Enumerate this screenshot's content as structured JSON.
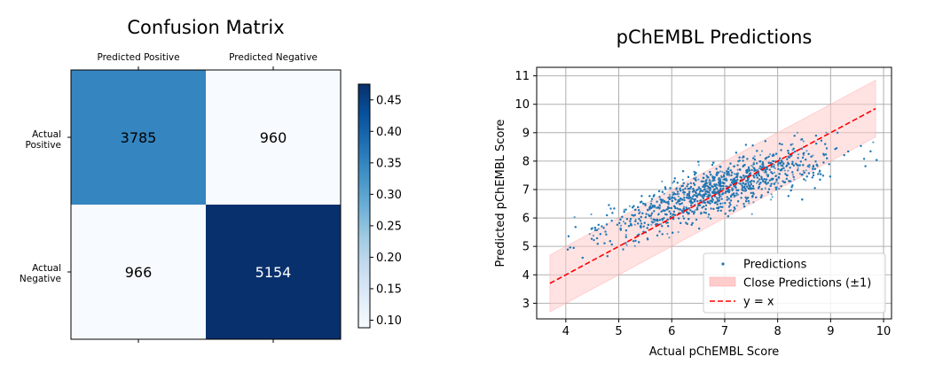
{
  "chart_data": [
    {
      "type": "heatmap",
      "title": "Confusion Matrix",
      "col_labels": [
        "Predicted Positive",
        "Predicted Negative"
      ],
      "row_labels": [
        [
          "Actual",
          "Positive"
        ],
        [
          "Actual",
          "Negative"
        ]
      ],
      "counts": [
        [
          3785,
          960
        ],
        [
          966,
          5154
        ]
      ],
      "colormap": "Blues",
      "colorbar": {
        "min": 0.088,
        "max": 0.475,
        "ticks": [
          0.1,
          0.15,
          0.2,
          0.25,
          0.3,
          0.35,
          0.4,
          0.45
        ],
        "tick_labels": [
          "0.10",
          "0.15",
          "0.20",
          "0.25",
          "0.30",
          "0.35",
          "0.40",
          "0.45"
        ]
      }
    },
    {
      "type": "scatter",
      "title": "pChEMBL Predictions",
      "xlabel": "Actual pChEMBL Score",
      "ylabel": "Predicted pChEMBL Score",
      "xlim": [
        3.45,
        10.15
      ],
      "ylim": [
        2.45,
        11.3
      ],
      "xticks": [
        4,
        5,
        6,
        7,
        8,
        9,
        10
      ],
      "yticks": [
        3,
        4,
        5,
        6,
        7,
        8,
        9,
        10,
        11
      ],
      "grid": true,
      "legend_position": "lower-right",
      "legend": [
        "Predictions",
        "Close Predictions (±1)",
        "y = x"
      ],
      "colors": {
        "points": "#1f77b4",
        "band": "#ffcccc",
        "band_edge": "#ff9999",
        "identity": "#ff0000"
      },
      "band": {
        "x": [
          3.7,
          9.85
        ],
        "offset": 1
      },
      "identity_line": {
        "x": [
          3.7,
          9.85
        ],
        "y": [
          3.7,
          9.85
        ]
      },
      "point_count": 10865,
      "point_cloud": {
        "x_range": [
          3.7,
          9.9
        ],
        "y_range": [
          4.0,
          9.0
        ],
        "trend": [
          [
            4.0,
            5.0
          ],
          [
            5.0,
            5.65
          ],
          [
            6.0,
            6.45
          ],
          [
            7.0,
            7.1
          ],
          [
            8.0,
            7.75
          ],
          [
            9.0,
            8.25
          ],
          [
            9.8,
            8.6
          ]
        ]
      }
    }
  ]
}
